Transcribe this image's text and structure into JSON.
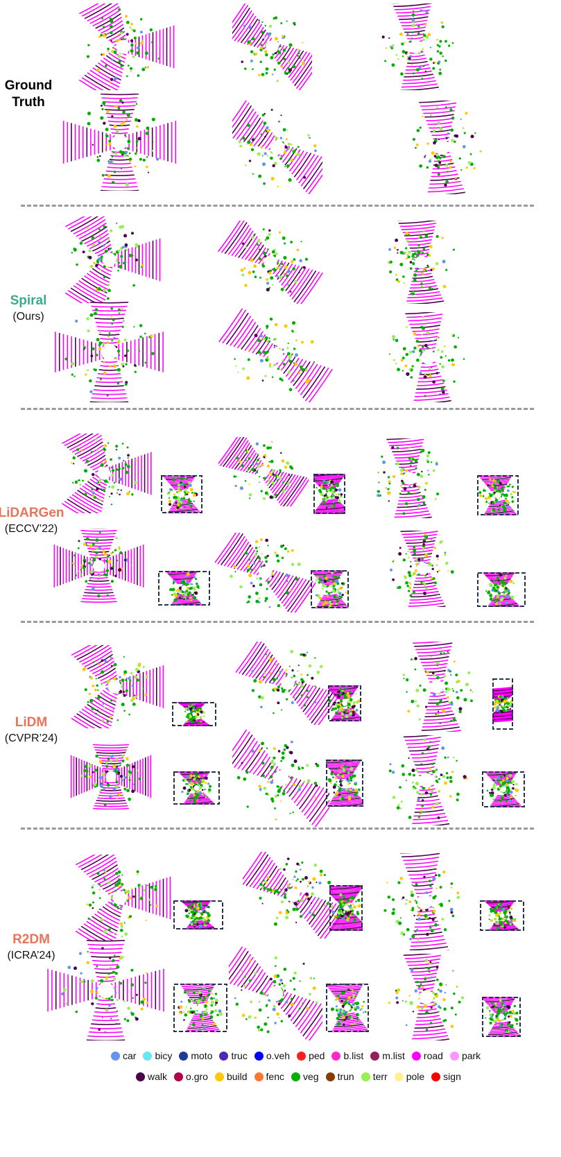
{
  "rows": [
    {
      "name": "Ground",
      "name2": "Truth",
      "sub": "",
      "color": "#000000"
    },
    {
      "name": "Spiral",
      "name2": "",
      "sub": "(Ours)",
      "color": "#3aaa8a"
    },
    {
      "name": "LiDARGen",
      "name2": "",
      "sub": "(ECCV’22)",
      "color": "#e8735a"
    },
    {
      "name": "LiDM",
      "name2": "",
      "sub": "(CVPR’24)",
      "color": "#e8735a"
    },
    {
      "name": "R2DM",
      "name2": "",
      "sub": "(ICRA’24)",
      "color": "#e8735a"
    }
  ],
  "legend": {
    "row1": [
      {
        "label": "car",
        "color": "#6495ed"
      },
      {
        "label": "bicy",
        "color": "#64e6f5"
      },
      {
        "label": "moto",
        "color": "#1e3c96"
      },
      {
        "label": "truc",
        "color": "#5028b4"
      },
      {
        "label": "o.veh",
        "color": "#0000ff"
      },
      {
        "label": "ped",
        "color": "#ff1e1e"
      },
      {
        "label": "b.list",
        "color": "#ff28c8"
      },
      {
        "label": "m.list",
        "color": "#961e5a"
      },
      {
        "label": "road",
        "color": "#ff00ff"
      },
      {
        "label": "park",
        "color": "#ff96ff"
      }
    ],
    "row2": [
      {
        "label": "walk",
        "color": "#4b004b"
      },
      {
        "label": "o.gro",
        "color": "#af004b"
      },
      {
        "label": "build",
        "color": "#ffc800"
      },
      {
        "label": "fenc",
        "color": "#ff7832"
      },
      {
        "label": "veg",
        "color": "#00af00"
      },
      {
        "label": "trun",
        "color": "#873c00"
      },
      {
        "label": "terr",
        "color": "#96f050"
      },
      {
        "label": "pole",
        "color": "#fff096"
      },
      {
        "label": "sign",
        "color": "#ff0000"
      }
    ]
  }
}
